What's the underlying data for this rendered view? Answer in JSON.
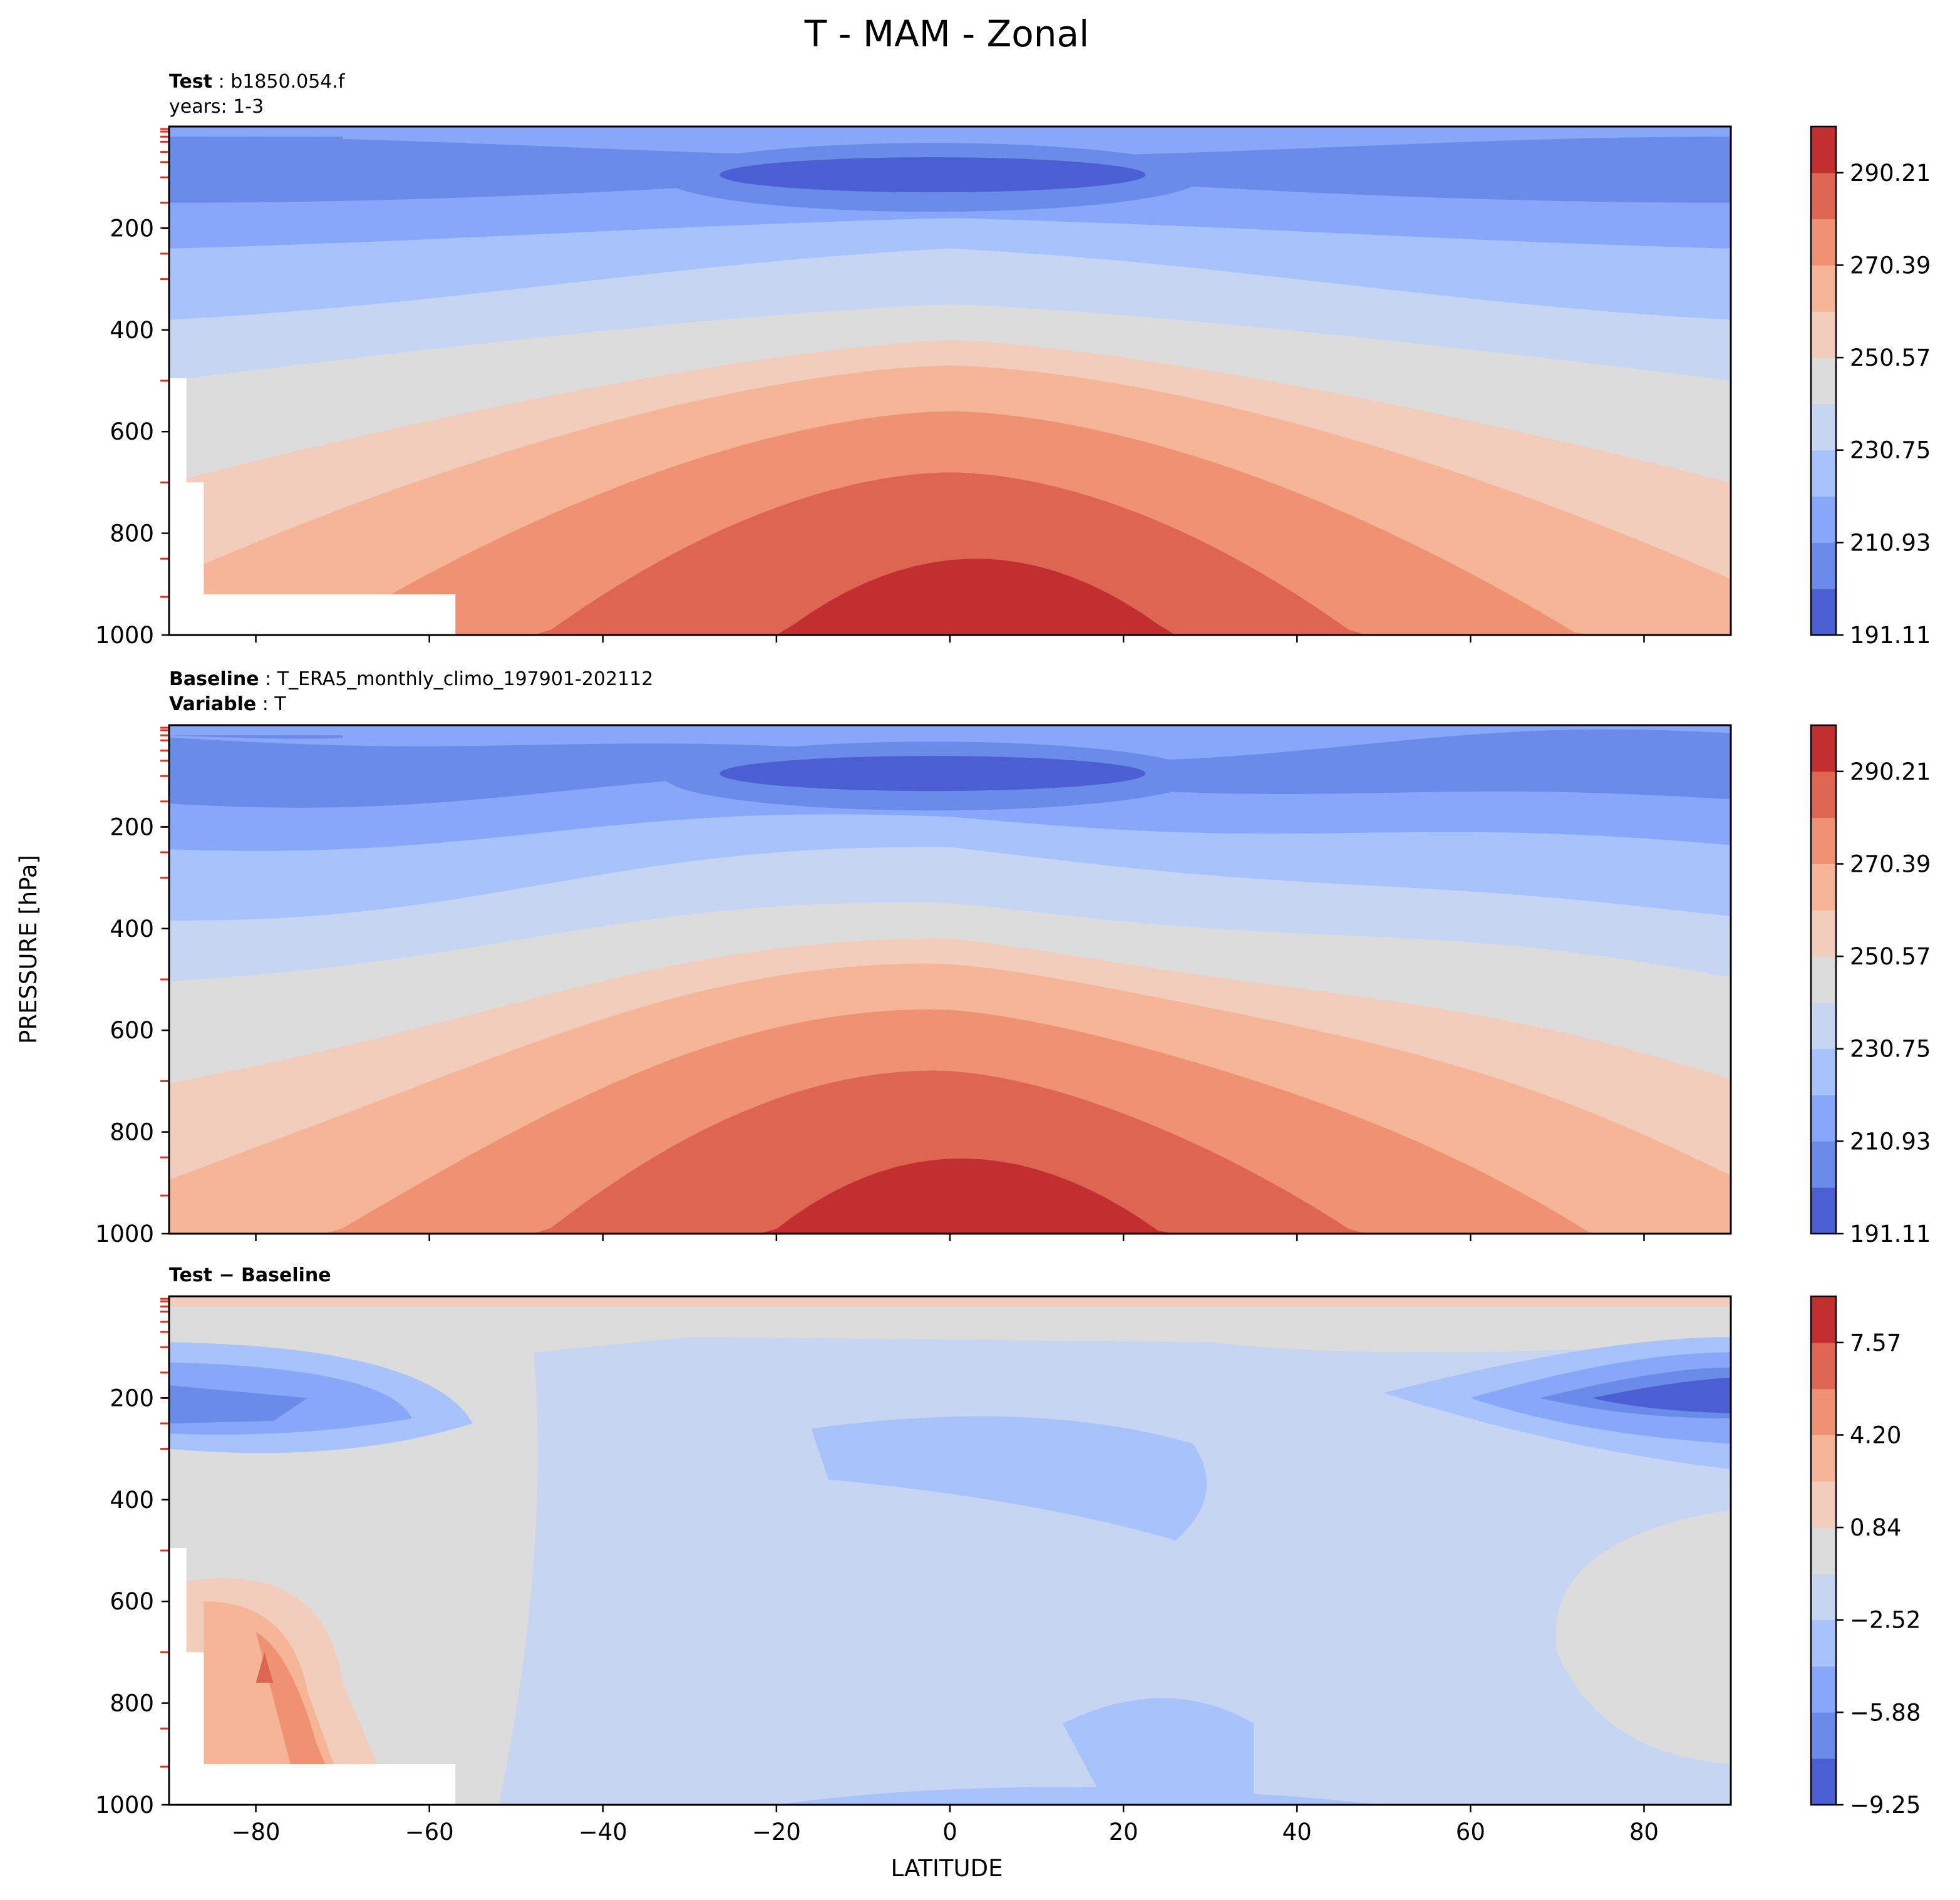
{
  "chart_data": {
    "type": "contour",
    "title": "T - MAM - Zonal",
    "xlabel": "LATITUDE",
    "ylabel": "PRESSURE [hPa]",
    "xlim": [
      -90,
      90
    ],
    "ylim": [
      1000,
      0
    ],
    "x_ticks": [
      -80,
      -60,
      -40,
      -20,
      0,
      20,
      40,
      60,
      80
    ],
    "x_tick_labels": [
      "−80",
      "−60",
      "−40",
      "−20",
      "0",
      "20",
      "40",
      "60",
      "80"
    ],
    "y_ticks": [
      200,
      400,
      600,
      800,
      1000
    ],
    "y_tick_labels": [
      "200",
      "400",
      "600",
      "800",
      "1000"
    ],
    "panels": [
      {
        "name": "test",
        "header": [
          {
            "bold": "Test",
            "text": " : b1850.054.f"
          },
          {
            "bold": "",
            "text": "years: 1-3"
          }
        ],
        "colorbar": {
          "ticks": [
            191.11,
            210.93,
            230.75,
            250.57,
            270.39,
            290.21
          ],
          "tick_labels": [
            "191.11",
            "210.93",
            "230.75",
            "250.57",
            "270.39",
            "290.21"
          ],
          "levels": 11,
          "colors": [
            "#4a5fd2",
            "#6b8be9",
            "#87a8f8",
            "#a8c2fb",
            "#c6d6f2",
            "#dcdcdc",
            "#f2cdbb",
            "#f5b596",
            "#ef9173",
            "#df6553",
            "#c12f30"
          ]
        }
      },
      {
        "name": "baseline",
        "header": [
          {
            "bold": "Baseline",
            "text": " : T_ERA5_monthly_climo_197901-202112"
          },
          {
            "bold": "Variable",
            "text": " : T"
          }
        ],
        "colorbar": {
          "ticks": [
            191.11,
            210.93,
            230.75,
            250.57,
            270.39,
            290.21
          ],
          "tick_labels": [
            "191.11",
            "210.93",
            "230.75",
            "250.57",
            "270.39",
            "290.21"
          ],
          "levels": 11,
          "colors": [
            "#4a5fd2",
            "#6b8be9",
            "#87a8f8",
            "#a8c2fb",
            "#c6d6f2",
            "#dcdcdc",
            "#f2cdbb",
            "#f5b596",
            "#ef9173",
            "#df6553",
            "#c12f30"
          ]
        }
      },
      {
        "name": "difference",
        "header": [
          {
            "bold": "Test − Baseline",
            "text": ""
          }
        ],
        "colorbar": {
          "ticks": [
            -9.25,
            -5.88,
            -2.52,
            0.84,
            4.2,
            7.57
          ],
          "tick_labels": [
            "−9.25",
            "−5.88",
            "−2.52",
            "0.84",
            "4.20",
            "7.57"
          ],
          "levels": 11,
          "colors": [
            "#4a5fd2",
            "#6b8be9",
            "#87a8f8",
            "#a8c2fb",
            "#c6d6f2",
            "#dcdcdc",
            "#f2cdbb",
            "#f5b596",
            "#ef9173",
            "#df6553",
            "#c12f30"
          ]
        }
      }
    ]
  }
}
